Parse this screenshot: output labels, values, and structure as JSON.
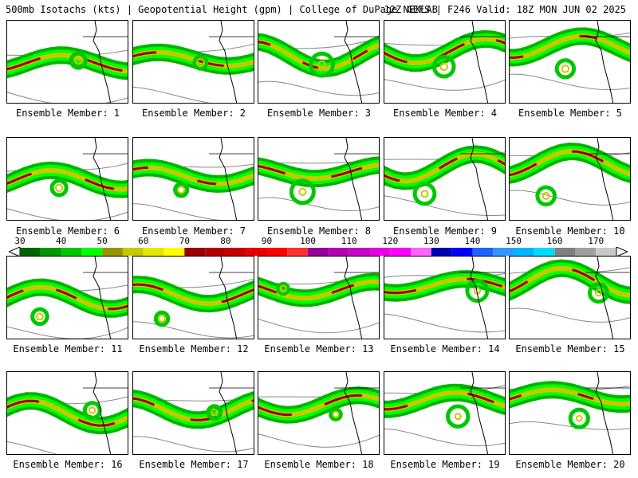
{
  "header": {
    "left": "500mb Isotachs (kts) | Geopotential Height (gpm) | College of DuPage NEXLAB",
    "right": "12Z GEFS | F246 Valid: 18Z MON JUN 02 2025"
  },
  "panels": [
    {
      "label": "Ensemble Member: 1"
    },
    {
      "label": "Ensemble Member: 2"
    },
    {
      "label": "Ensemble Member: 3"
    },
    {
      "label": "Ensemble Member: 4"
    },
    {
      "label": "Ensemble Member: 5"
    },
    {
      "label": "Ensemble Member: 6"
    },
    {
      "label": "Ensemble Member: 7"
    },
    {
      "label": "Ensemble Member: 8"
    },
    {
      "label": "Ensemble Member: 9"
    },
    {
      "label": "Ensemble Member: 10"
    },
    {
      "label": "Ensemble Member: 11"
    },
    {
      "label": "Ensemble Member: 12"
    },
    {
      "label": "Ensemble Member: 13"
    },
    {
      "label": "Ensemble Member: 14"
    },
    {
      "label": "Ensemble Member: 15"
    },
    {
      "label": "Ensemble Member: 16"
    },
    {
      "label": "Ensemble Member: 17"
    },
    {
      "label": "Ensemble Member: 18"
    },
    {
      "label": "Ensemble Member: 19"
    },
    {
      "label": "Ensemble Member: 20"
    }
  ],
  "colorbar": {
    "labels": [
      "30",
      "40",
      "50",
      "60",
      "70",
      "80",
      "90",
      "100",
      "110",
      "120",
      "130",
      "140",
      "150",
      "160",
      "170"
    ],
    "colors": [
      "#006400",
      "#009600",
      "#00c800",
      "#00ff00",
      "#969600",
      "#c8c800",
      "#e6e600",
      "#ffff00",
      "#960000",
      "#b40000",
      "#c80000",
      "#e60000",
      "#ff0000",
      "#ff3232",
      "#960096",
      "#b400b4",
      "#c800c8",
      "#e600e6",
      "#ff00ff",
      "#ff64ff",
      "#0000b4",
      "#0000ff",
      "#1e64ff",
      "#3296ff",
      "#00b4ff",
      "#00dcff",
      "#808080",
      "#a0a0a0",
      "#c8c8c8"
    ]
  }
}
